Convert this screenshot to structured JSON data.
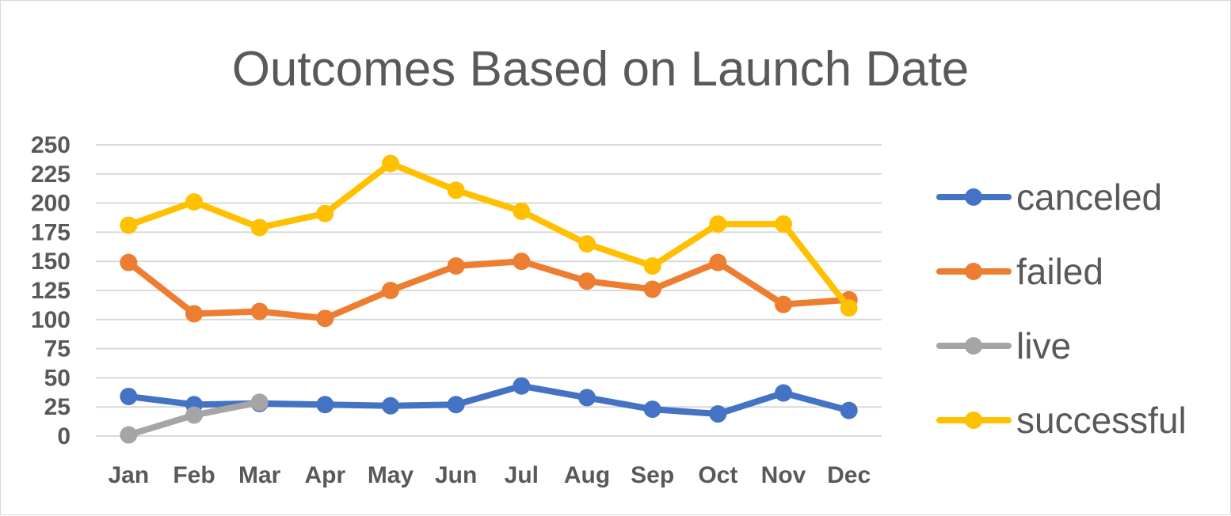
{
  "chart_data": {
    "type": "line",
    "title": "Outcomes Based on Launch Date",
    "xlabel": "",
    "ylabel": "",
    "categories": [
      "Jan",
      "Feb",
      "Mar",
      "Apr",
      "May",
      "Jun",
      "Jul",
      "Aug",
      "Sep",
      "Oct",
      "Nov",
      "Dec"
    ],
    "yticks": [
      "0",
      "25",
      "50",
      "75",
      "100",
      "125",
      "150",
      "175",
      "200",
      "225",
      "250"
    ],
    "ylim": [
      0,
      250
    ],
    "grid": true,
    "legend_position": "right",
    "series": [
      {
        "name": "canceled",
        "color": "#4472c4",
        "values": [
          34,
          27,
          28,
          27,
          26,
          27,
          43,
          33,
          23,
          19,
          37,
          22
        ]
      },
      {
        "name": "failed",
        "color": "#ed7d31",
        "values": [
          149,
          105,
          107,
          101,
          125,
          146,
          150,
          133,
          126,
          149,
          113,
          117
        ]
      },
      {
        "name": "live",
        "color": "#a5a5a5",
        "values": [
          1,
          18,
          29,
          null,
          null,
          null,
          null,
          null,
          null,
          null,
          null,
          null
        ]
      },
      {
        "name": "successful",
        "color": "#ffc000",
        "values": [
          181,
          201,
          179,
          191,
          234,
          211,
          193,
          165,
          146,
          182,
          182,
          110
        ]
      }
    ]
  }
}
